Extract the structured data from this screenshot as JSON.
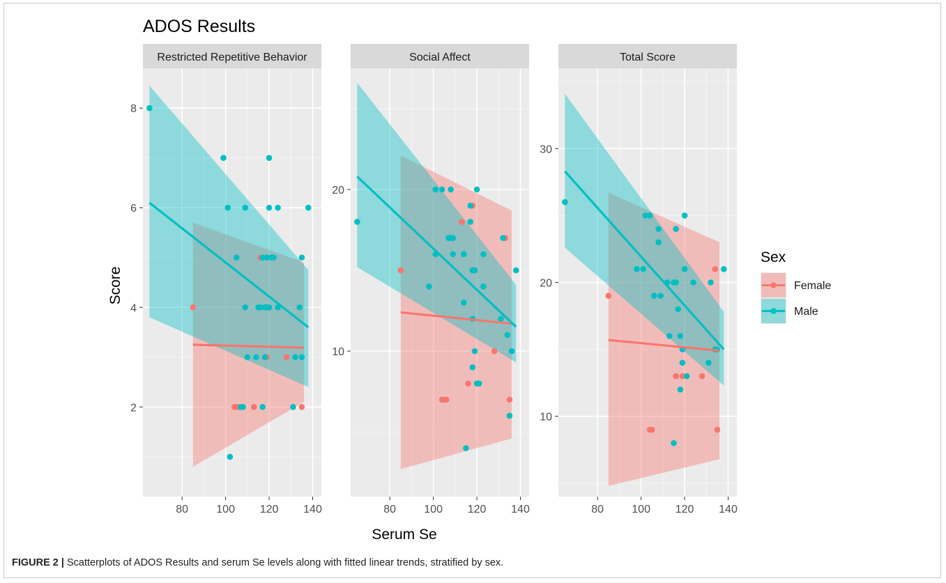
{
  "chart_data": {
    "type": "scatter",
    "title": "ADOS Results",
    "xlabel": "Serum Se",
    "ylabel": "Score",
    "legend": {
      "title": "Sex",
      "position": "right",
      "entries": [
        {
          "name": "Female",
          "color": "#F8766D"
        },
        {
          "name": "Male",
          "color": "#00BFC4"
        }
      ]
    },
    "grid": true,
    "xlim": [
      62,
      144
    ],
    "x_ticks": [
      80,
      100,
      120,
      140
    ],
    "panels": [
      {
        "title": "Restricted Repetitive Behavior",
        "ylim": [
          0.2,
          8.8
        ],
        "y_ticks": [
          2,
          4,
          6,
          8
        ],
        "series": [
          {
            "name": "Female",
            "points": [
              [
                85,
                4
              ],
              [
                104,
                2
              ],
              [
                105,
                2
              ],
              [
                106,
                2
              ],
              [
                113,
                2
              ],
              [
                116,
                5
              ],
              [
                119,
                3
              ],
              [
                128,
                3
              ],
              [
                135,
                2
              ]
            ],
            "fit": {
              "x": [
                85,
                136
              ],
              "y": [
                3.25,
                3.19
              ],
              "lower": [
                0.8,
                2.1
              ],
              "upper": [
                5.7,
                4.9
              ]
            }
          },
          {
            "name": "Male",
            "points": [
              [
                65,
                8
              ],
              [
                99,
                7
              ],
              [
                101,
                6
              ],
              [
                102,
                1
              ],
              [
                105,
                5
              ],
              [
                107,
                2
              ],
              [
                108,
                2
              ],
              [
                109,
                4
              ],
              [
                109,
                6
              ],
              [
                110,
                3
              ],
              [
                114,
                3
              ],
              [
                115,
                4
              ],
              [
                116,
                4
              ],
              [
                117,
                2
              ],
              [
                117,
                5
              ],
              [
                118,
                3
              ],
              [
                118,
                4
              ],
              [
                119,
                4
              ],
              [
                119,
                5
              ],
              [
                120,
                4
              ],
              [
                120,
                7
              ],
              [
                120,
                6
              ],
              [
                121,
                5
              ],
              [
                122,
                5
              ],
              [
                124,
                6
              ],
              [
                124,
                4
              ],
              [
                131,
                2
              ],
              [
                132,
                3
              ],
              [
                134,
                4
              ],
              [
                135,
                3
              ],
              [
                135,
                5
              ],
              [
                138,
                6
              ]
            ],
            "fit": {
              "x": [
                65,
                138
              ],
              "y": [
                6.1,
                3.6
              ],
              "lower": [
                3.8,
                2.4
              ],
              "upper": [
                8.45,
                4.75
              ]
            }
          }
        ]
      },
      {
        "title": "Social Affect",
        "ylim": [
          1,
          27.5
        ],
        "y_ticks": [
          10,
          20
        ],
        "series": [
          {
            "name": "Female",
            "points": [
              [
                85,
                15
              ],
              [
                104,
                7
              ],
              [
                105,
                7
              ],
              [
                106,
                7
              ],
              [
                113,
                18
              ],
              [
                116,
                8
              ],
              [
                118,
                19
              ],
              [
                128,
                10
              ],
              [
                133,
                17
              ],
              [
                135,
                7
              ]
            ],
            "fit": {
              "x": [
                85,
                136
              ],
              "y": [
                12.4,
                11.7
              ],
              "lower": [
                2.7,
                4.6
              ],
              "upper": [
                22.1,
                18.7
              ]
            }
          },
          {
            "name": "Male",
            "points": [
              [
                65,
                18
              ],
              [
                98,
                14
              ],
              [
                101,
                20
              ],
              [
                101,
                16
              ],
              [
                104,
                20
              ],
              [
                107,
                17
              ],
              [
                108,
                20
              ],
              [
                108,
                17
              ],
              [
                109,
                17
              ],
              [
                109,
                16
              ],
              [
                114,
                16
              ],
              [
                114,
                13
              ],
              [
                115,
                4
              ],
              [
                117,
                18
              ],
              [
                117,
                19
              ],
              [
                118,
                12
              ],
              [
                118,
                15
              ],
              [
                118,
                9
              ],
              [
                119,
                10
              ],
              [
                119,
                15
              ],
              [
                120,
                20
              ],
              [
                120,
                8
              ],
              [
                121,
                8
              ],
              [
                123,
                14
              ],
              [
                123,
                16
              ],
              [
                131,
                12
              ],
              [
                132,
                17
              ],
              [
                134,
                11
              ],
              [
                135,
                6
              ],
              [
                136,
                10
              ],
              [
                138,
                15
              ]
            ],
            "fit": {
              "x": [
                65,
                138
              ],
              "y": [
                20.8,
                11.5
              ],
              "lower": [
                15.2,
                9.3
              ],
              "upper": [
                26.6,
                14.1
              ]
            }
          }
        ]
      },
      {
        "title": "Total Score",
        "ylim": [
          4,
          36
        ],
        "y_ticks": [
          10,
          20,
          30
        ],
        "series": [
          {
            "name": "Female",
            "points": [
              [
                85,
                19
              ],
              [
                104,
                9
              ],
              [
                105,
                9
              ],
              [
                112,
                20
              ],
              [
                116,
                24
              ],
              [
                116,
                13
              ],
              [
                119,
                13
              ],
              [
                128,
                13
              ],
              [
                134,
                21
              ],
              [
                135,
                9
              ]
            ],
            "fit": {
              "x": [
                85,
                136
              ],
              "y": [
                15.7,
                14.9
              ],
              "lower": [
                4.8,
                6.8
              ],
              "upper": [
                26.7,
                23.0
              ]
            }
          },
          {
            "name": "Male",
            "points": [
              [
                65,
                26
              ],
              [
                98,
                21
              ],
              [
                101,
                21
              ],
              [
                102,
                25
              ],
              [
                104,
                25
              ],
              [
                106,
                19
              ],
              [
                108,
                23
              ],
              [
                108,
                24
              ],
              [
                109,
                19
              ],
              [
                112,
                20
              ],
              [
                113,
                16
              ],
              [
                115,
                20
              ],
              [
                115,
                8
              ],
              [
                116,
                24
              ],
              [
                116,
                20
              ],
              [
                117,
                18
              ],
              [
                118,
                12
              ],
              [
                118,
                16
              ],
              [
                119,
                15
              ],
              [
                119,
                14
              ],
              [
                120,
                21
              ],
              [
                120,
                25
              ],
              [
                121,
                13
              ],
              [
                124,
                20
              ],
              [
                131,
                14
              ],
              [
                132,
                20
              ],
              [
                134,
                15
              ],
              [
                135,
                15
              ],
              [
                138,
                21
              ]
            ],
            "fit": {
              "x": [
                65,
                138
              ],
              "y": [
                28.3,
                15.0
              ],
              "lower": [
                22.6,
                12.3
              ],
              "upper": [
                34.1,
                17.8
              ]
            }
          }
        ]
      }
    ]
  },
  "caption": {
    "label": "FIGURE 2 |",
    "text": " Scatterplots of ADOS Results and serum Se levels along with fitted linear trends, stratified by sex."
  }
}
